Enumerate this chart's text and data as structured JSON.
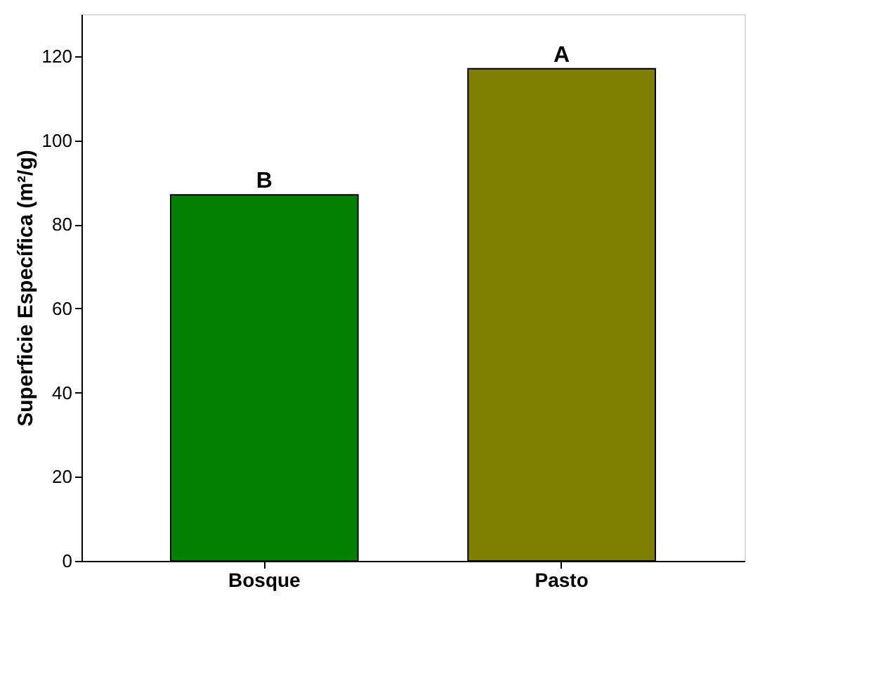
{
  "chart_data": {
    "type": "bar",
    "ylabel": "Superficie Específica (m²/g)",
    "categories": [
      "Bosque",
      "Pasto"
    ],
    "values": [
      87,
      117
    ],
    "colors": [
      "#007f00",
      "#7f7f00"
    ],
    "ylim": [
      0,
      130
    ],
    "yticks": [
      0,
      20,
      40,
      60,
      80,
      100,
      120
    ],
    "grid": false,
    "annotations": [
      {
        "text": "B",
        "x": "Bosque",
        "y": 87
      },
      {
        "text": "A",
        "x": "Pasto",
        "y": 117
      }
    ]
  }
}
